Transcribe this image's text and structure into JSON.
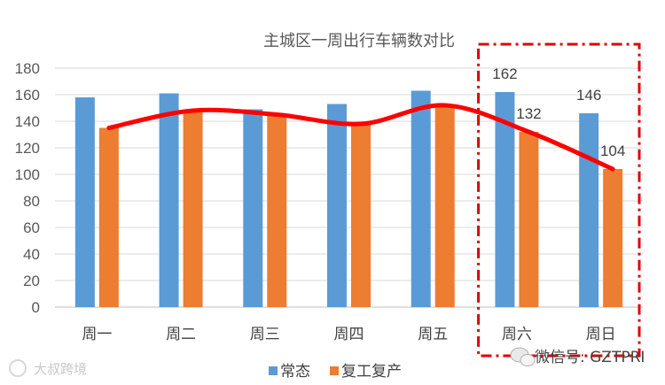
{
  "chart_data": {
    "type": "bar",
    "title": "主城区一周出行车辆数对比",
    "categories": [
      "周一",
      "周二",
      "周三",
      "周四",
      "周五",
      "周六",
      "周日"
    ],
    "series": [
      {
        "name": "常态",
        "values": [
          158,
          161,
          149,
          153,
          163,
          162,
          146
        ],
        "color": "#5B9BD5"
      },
      {
        "name": "复工复产",
        "values": [
          135,
          148,
          145,
          138,
          152,
          132,
          104
        ],
        "color": "#ED7D31"
      }
    ],
    "trend_line": {
      "color": "#FF0000",
      "follows_series": "复工复产"
    },
    "data_labels": [
      {
        "category": "周六",
        "series": "常态",
        "text": "162"
      },
      {
        "category": "周六",
        "series": "复工复产",
        "text": "132"
      },
      {
        "category": "周日",
        "series": "常态",
        "text": "146"
      },
      {
        "category": "周日",
        "series": "复工复产",
        "text": "104"
      }
    ],
    "highlight": {
      "categories": [
        "周六",
        "周日"
      ],
      "style": "red dash-dot box"
    },
    "yticks": [
      0,
      20,
      40,
      60,
      80,
      100,
      120,
      140,
      160,
      180
    ],
    "ylim": [
      0,
      180
    ],
    "grid": true,
    "legend_position": "bottom"
  },
  "watermarks": {
    "left": "大叔跨境",
    "right": "微信号: GZTPRI"
  }
}
